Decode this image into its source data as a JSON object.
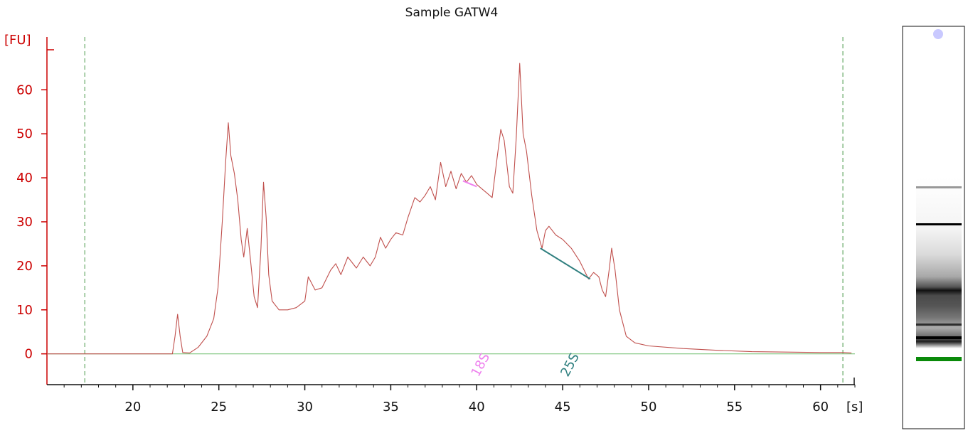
{
  "chart_data": {
    "type": "line",
    "title": "Sample GATW4",
    "ylabel": "[FU]",
    "xlabel": "[s]",
    "xlim": [
      15,
      62
    ],
    "ylim": [
      -7,
      72
    ],
    "x_ticks": [
      20,
      25,
      30,
      35,
      40,
      45,
      50,
      55,
      60
    ],
    "y_ticks": [
      0,
      10,
      20,
      30,
      40,
      50,
      60
    ],
    "markers": [
      17.2,
      61.3
    ],
    "series": [
      {
        "color": "#c0504d",
        "points": [
          [
            15.0,
            0.0
          ],
          [
            22.3,
            0.0
          ],
          [
            22.45,
            4.0
          ],
          [
            22.6,
            9.0
          ],
          [
            22.75,
            4.0
          ],
          [
            22.9,
            0.3
          ],
          [
            23.3,
            0.2
          ],
          [
            23.8,
            1.5
          ],
          [
            24.3,
            4.0
          ],
          [
            24.7,
            8.0
          ],
          [
            24.95,
            15.0
          ],
          [
            25.2,
            30.0
          ],
          [
            25.4,
            44.0
          ],
          [
            25.55,
            52.5
          ],
          [
            25.7,
            45.0
          ],
          [
            25.9,
            41.0
          ],
          [
            26.1,
            35.0
          ],
          [
            26.3,
            26.0
          ],
          [
            26.45,
            22.0
          ],
          [
            26.65,
            28.5
          ],
          [
            26.85,
            21.0
          ],
          [
            27.05,
            13.0
          ],
          [
            27.25,
            10.5
          ],
          [
            27.45,
            24.0
          ],
          [
            27.6,
            39.0
          ],
          [
            27.75,
            31.0
          ],
          [
            27.9,
            18.0
          ],
          [
            28.1,
            12.0
          ],
          [
            28.5,
            10.0
          ],
          [
            29.0,
            10.0
          ],
          [
            29.5,
            10.5
          ],
          [
            30.0,
            12.0
          ],
          [
            30.2,
            17.5
          ],
          [
            30.6,
            14.5
          ],
          [
            31.0,
            15.0
          ],
          [
            31.5,
            19.0
          ],
          [
            31.8,
            20.5
          ],
          [
            32.1,
            18.0
          ],
          [
            32.5,
            22.0
          ],
          [
            33.0,
            19.5
          ],
          [
            33.4,
            22.0
          ],
          [
            33.8,
            20.0
          ],
          [
            34.1,
            22.0
          ],
          [
            34.4,
            26.5
          ],
          [
            34.7,
            24.0
          ],
          [
            35.0,
            26.0
          ],
          [
            35.3,
            27.5
          ],
          [
            35.7,
            27.0
          ],
          [
            36.0,
            31.0
          ],
          [
            36.4,
            35.5
          ],
          [
            36.7,
            34.5
          ],
          [
            37.0,
            36.0
          ],
          [
            37.3,
            38.0
          ],
          [
            37.6,
            35.0
          ],
          [
            37.9,
            43.5
          ],
          [
            38.2,
            38.0
          ],
          [
            38.5,
            41.5
          ],
          [
            38.8,
            37.5
          ],
          [
            39.1,
            41.0
          ],
          [
            39.4,
            39.0
          ],
          [
            39.7,
            40.5
          ],
          [
            40.0,
            38.5
          ],
          [
            40.3,
            37.5
          ],
          [
            40.6,
            36.5
          ],
          [
            40.9,
            35.5
          ],
          [
            41.2,
            45.0
          ],
          [
            41.4,
            51.0
          ],
          [
            41.6,
            48.5
          ],
          [
            41.9,
            38.0
          ],
          [
            42.1,
            36.5
          ],
          [
            42.3,
            49.0
          ],
          [
            42.5,
            66.0
          ],
          [
            42.7,
            50.0
          ],
          [
            42.9,
            46.0
          ],
          [
            43.2,
            36.0
          ],
          [
            43.5,
            28.0
          ],
          [
            43.8,
            24.0
          ],
          [
            44.0,
            28.0
          ],
          [
            44.2,
            29.0
          ],
          [
            44.6,
            27.0
          ],
          [
            45.0,
            26.0
          ],
          [
            45.5,
            24.0
          ],
          [
            46.0,
            21.0
          ],
          [
            46.5,
            17.0
          ],
          [
            46.8,
            18.5
          ],
          [
            47.1,
            17.5
          ],
          [
            47.3,
            14.5
          ],
          [
            47.5,
            13.0
          ],
          [
            47.7,
            19.0
          ],
          [
            47.85,
            24.0
          ],
          [
            48.05,
            19.0
          ],
          [
            48.3,
            10.0
          ],
          [
            48.7,
            4.0
          ],
          [
            49.2,
            2.5
          ],
          [
            50.0,
            1.8
          ],
          [
            52.0,
            1.2
          ],
          [
            54.0,
            0.8
          ],
          [
            56.0,
            0.5
          ],
          [
            58.0,
            0.4
          ],
          [
            60.0,
            0.3
          ],
          [
            61.3,
            0.3
          ],
          [
            61.8,
            0.2
          ]
        ]
      }
    ],
    "baseline": {
      "y": 0,
      "color": "#7bc47b"
    },
    "peak_annotations": [
      {
        "label": "18S",
        "x": 40.1,
        "color": "#ee82ee",
        "segment": [
          [
            39.2,
            39.3
          ],
          [
            40.0,
            38.0
          ]
        ]
      },
      {
        "label": "25S",
        "x": 45.3,
        "color": "#2f7f7f",
        "segment": [
          [
            43.7,
            24.0
          ],
          [
            46.6,
            17.0
          ]
        ]
      }
    ],
    "gel": {
      "marker_band_color": "#0a8a0a",
      "top_spot_color": "#c9c9ff"
    }
  }
}
